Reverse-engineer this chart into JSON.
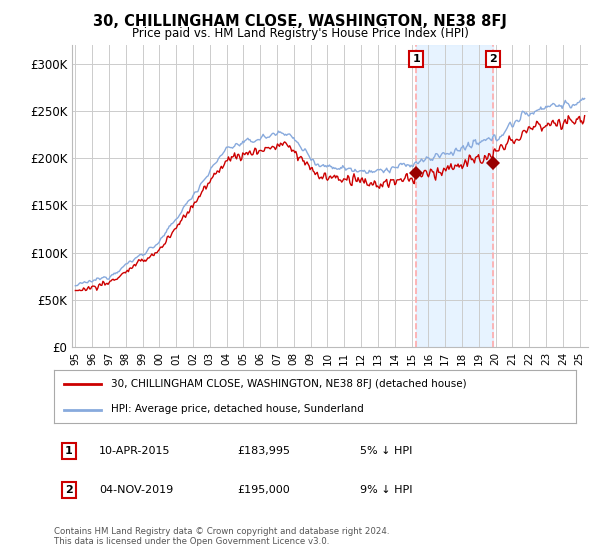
{
  "title": "30, CHILLINGHAM CLOSE, WASHINGTON, NE38 8FJ",
  "subtitle": "Price paid vs. HM Land Registry's House Price Index (HPI)",
  "ylabel_ticks": [
    "£0",
    "£50K",
    "£100K",
    "£150K",
    "£200K",
    "£250K",
    "£300K"
  ],
  "ytick_values": [
    0,
    50000,
    100000,
    150000,
    200000,
    250000,
    300000
  ],
  "ylim": [
    0,
    315000
  ],
  "xlim_start": 1994.8,
  "xlim_end": 2025.5,
  "sale1": {
    "date_label": "10-APR-2015",
    "price": 183995,
    "year": 2015.28,
    "label": "1",
    "pct": "5% ↓ HPI"
  },
  "sale2": {
    "date_label": "04-NOV-2019",
    "price": 195000,
    "year": 2019.84,
    "label": "2",
    "pct": "9% ↓ HPI"
  },
  "red_line_color": "#cc0000",
  "blue_line_color": "#88aadd",
  "marker_box_color": "#cc0000",
  "marker_fill_color": "#990000",
  "legend_label_red": "30, CHILLINGHAM CLOSE, WASHINGTON, NE38 8FJ (detached house)",
  "legend_label_blue": "HPI: Average price, detached house, Sunderland",
  "footnote": "Contains HM Land Registry data © Crown copyright and database right 2024.\nThis data is licensed under the Open Government Licence v3.0.",
  "background_color": "#ffffff",
  "grid_color": "#cccccc",
  "shade_color": "#ddeeff",
  "dashed_line_color": "#ffaaaa"
}
